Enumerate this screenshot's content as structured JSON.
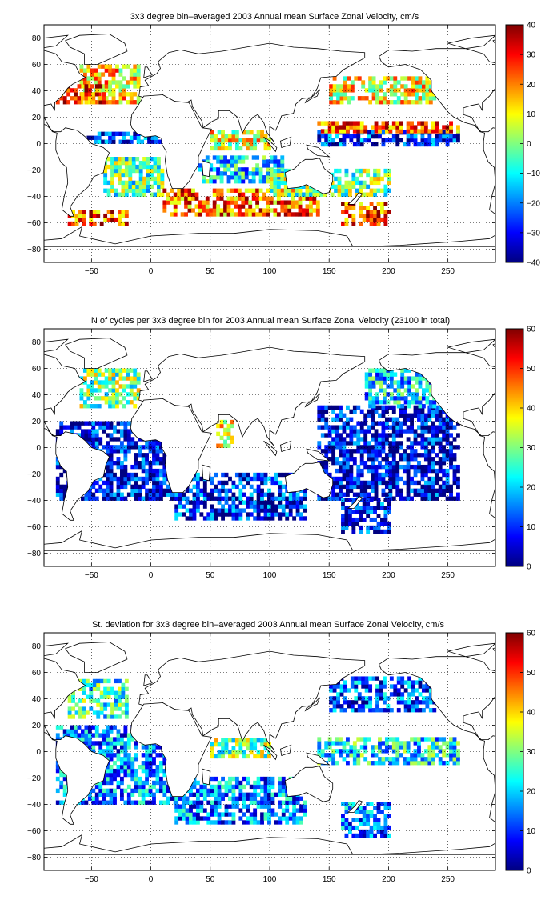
{
  "chart_data": [
    {
      "type": "heatmap",
      "title": "3x3 degree bin–averaged 2003 Annual mean Surface Zonal Velocity, cm/s",
      "xlabel": "",
      "ylabel": "",
      "xlim": [
        -90,
        290
      ],
      "ylim": [
        -90,
        90
      ],
      "xticks": [
        -50,
        0,
        50,
        100,
        150,
        200,
        250
      ],
      "yticks": [
        -80,
        -60,
        -40,
        -20,
        0,
        20,
        40,
        60,
        80
      ],
      "grid": true,
      "colorbar": {
        "min": -40,
        "max": 40,
        "ticks": [
          -40,
          -30,
          -20,
          -10,
          0,
          10,
          20,
          30,
          40
        ]
      },
      "bin_size_deg": 3,
      "regions": [
        {
          "lon": [
            -60,
            -10
          ],
          "lat": [
            30,
            60
          ],
          "value": 12
        },
        {
          "lon": [
            -80,
            -40
          ],
          "lat": [
            30,
            45
          ],
          "value": 30
        },
        {
          "lon": [
            -60,
            10
          ],
          "lat": [
            0,
            8
          ],
          "value": -25
        },
        {
          "lon": [
            -40,
            10
          ],
          "lat": [
            -40,
            -10
          ],
          "value": -3
        },
        {
          "lon": [
            -70,
            -20
          ],
          "lat": [
            -62,
            -50
          ],
          "value": 25
        },
        {
          "lon": [
            10,
            140
          ],
          "lat": [
            -55,
            -35
          ],
          "value": 22
        },
        {
          "lon": [
            50,
            100
          ],
          "lat": [
            -5,
            10
          ],
          "value": 8
        },
        {
          "lon": [
            40,
            110
          ],
          "lat": [
            -30,
            -10
          ],
          "value": -12
        },
        {
          "lon": [
            140,
            260
          ],
          "lat": [
            -2,
            8
          ],
          "value": -28
        },
        {
          "lon": [
            140,
            260
          ],
          "lat": [
            8,
            15
          ],
          "value": 22
        },
        {
          "lon": [
            150,
            240
          ],
          "lat": [
            30,
            50
          ],
          "value": 10
        },
        {
          "lon": [
            160,
            200
          ],
          "lat": [
            -62,
            -45
          ],
          "value": 25
        },
        {
          "lon": [
            100,
            200
          ],
          "lat": [
            -40,
            -20
          ],
          "value": 0
        }
      ]
    },
    {
      "type": "heatmap",
      "title": "N of cycles per 3x3 degree bin for 2003 Annual mean Surface Zonal Velocity (23100 in total)",
      "xlabel": "",
      "ylabel": "",
      "xlim": [
        -90,
        290
      ],
      "ylim": [
        -90,
        90
      ],
      "xticks": [
        -50,
        0,
        50,
        100,
        150,
        200,
        250
      ],
      "yticks": [
        -80,
        -60,
        -40,
        -20,
        0,
        20,
        40,
        60,
        80
      ],
      "grid": true,
      "colorbar": {
        "min": 0,
        "max": 60,
        "ticks": [
          0,
          10,
          20,
          30,
          40,
          50,
          60
        ]
      },
      "bin_size_deg": 3,
      "regions": [
        {
          "lon": [
            -60,
            -10
          ],
          "lat": [
            30,
            60
          ],
          "value": 30
        },
        {
          "lon": [
            -80,
            20
          ],
          "lat": [
            -40,
            20
          ],
          "value": 6
        },
        {
          "lon": [
            20,
            130
          ],
          "lat": [
            -55,
            -20
          ],
          "value": 8
        },
        {
          "lon": [
            55,
            70
          ],
          "lat": [
            0,
            20
          ],
          "value": 35
        },
        {
          "lon": [
            140,
            260
          ],
          "lat": [
            -40,
            30
          ],
          "value": 6
        },
        {
          "lon": [
            180,
            240
          ],
          "lat": [
            30,
            60
          ],
          "value": 20
        },
        {
          "lon": [
            160,
            200
          ],
          "lat": [
            -65,
            -40
          ],
          "value": 8
        }
      ]
    },
    {
      "type": "heatmap",
      "title": "St. deviation for 3x3 degree bin–averaged 2003 Annual mean Surface Zonal Velocity, cm/s",
      "xlabel": "",
      "ylabel": "",
      "xlim": [
        -90,
        290
      ],
      "ylim": [
        -90,
        90
      ],
      "xticks": [
        -50,
        0,
        50,
        100,
        150,
        200,
        250
      ],
      "yticks": [
        -80,
        -60,
        -40,
        -20,
        0,
        20,
        40,
        60,
        80
      ],
      "grid": true,
      "colorbar": {
        "min": 0,
        "max": 60,
        "ticks": [
          0,
          10,
          20,
          30,
          40,
          50,
          60
        ]
      },
      "bin_size_deg": 3,
      "regions": [
        {
          "lon": [
            -70,
            -20
          ],
          "lat": [
            25,
            55
          ],
          "value": 25
        },
        {
          "lon": [
            -80,
            20
          ],
          "lat": [
            -40,
            20
          ],
          "value": 15
        },
        {
          "lon": [
            20,
            130
          ],
          "lat": [
            -55,
            -20
          ],
          "value": 15
        },
        {
          "lon": [
            50,
            100
          ],
          "lat": [
            -5,
            10
          ],
          "value": 30
        },
        {
          "lon": [
            140,
            260
          ],
          "lat": [
            -10,
            10
          ],
          "value": 22
        },
        {
          "lon": [
            150,
            240
          ],
          "lat": [
            30,
            55
          ],
          "value": 12
        },
        {
          "lon": [
            160,
            200
          ],
          "lat": [
            -65,
            -40
          ],
          "value": 15
        }
      ]
    }
  ]
}
